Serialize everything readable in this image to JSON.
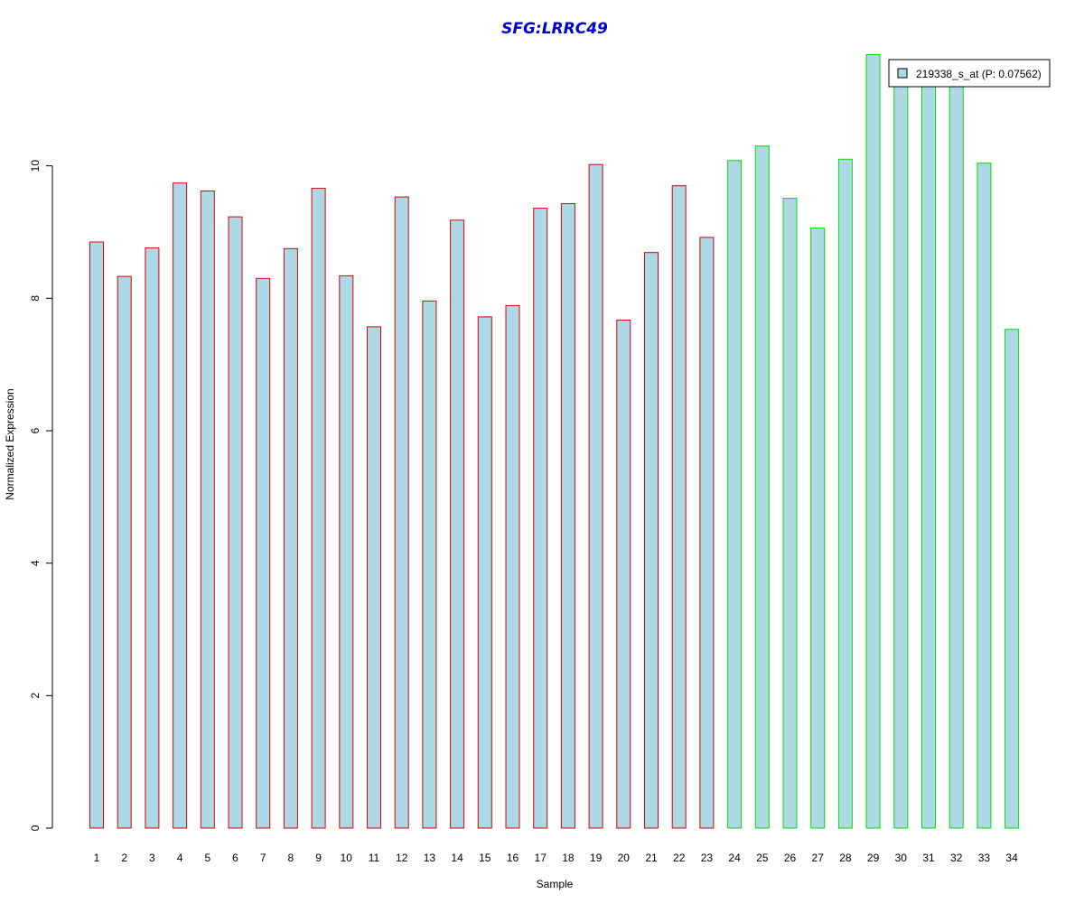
{
  "chart_data": {
    "type": "bar",
    "title": "SFG:LRRC49",
    "xlabel": "Sample",
    "ylabel": "Normalized Expression",
    "ylim": [
      0,
      11.7
    ],
    "yticks": [
      0,
      2,
      4,
      6,
      8,
      10
    ],
    "grid": false,
    "categories": [
      "1",
      "2",
      "3",
      "4",
      "5",
      "6",
      "7",
      "8",
      "9",
      "10",
      "11",
      "12",
      "13",
      "14",
      "15",
      "16",
      "17",
      "18",
      "19",
      "20",
      "21",
      "22",
      "23",
      "24",
      "25",
      "26",
      "27",
      "28",
      "29",
      "30",
      "31",
      "32",
      "33",
      "34"
    ],
    "series": [
      {
        "name": "219338_s_at (P: 0.07562)",
        "fill": "#add8e6",
        "values": [
          8.85,
          8.33,
          8.76,
          9.74,
          9.62,
          9.23,
          8.3,
          8.75,
          9.66,
          8.34,
          7.57,
          9.53,
          7.96,
          9.18,
          7.72,
          7.89,
          9.36,
          9.43,
          10.02,
          7.67,
          8.69,
          9.7,
          8.92,
          10.08,
          10.3,
          9.51,
          9.06,
          10.1,
          11.68,
          11.3,
          11.4,
          11.35,
          10.04,
          7.53
        ]
      }
    ],
    "group_border_colors": {
      "group_1": "#dd0000",
      "group_2": "#00dd00"
    },
    "group_1_count": 23,
    "legend": {
      "position": "top-right",
      "label": "219338_s_at (P: 0.07562)"
    },
    "title_color": "#0000cc"
  }
}
